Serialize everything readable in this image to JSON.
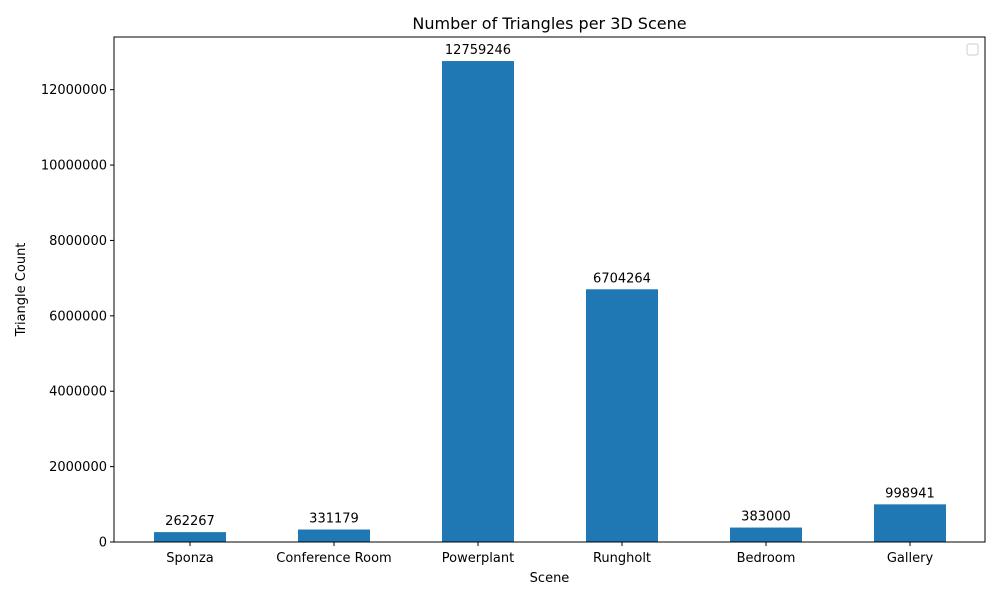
{
  "chart_data": {
    "type": "bar",
    "title": "Number of Triangles per 3D Scene",
    "xlabel": "Scene",
    "ylabel": "Triangle Count",
    "categories": [
      "Sponza",
      "Conference Room",
      "Powerplant",
      "Rungholt",
      "Bedroom",
      "Gallery"
    ],
    "values": [
      262267,
      331179,
      12759246,
      6704264,
      383000,
      998941
    ],
    "ylim": [
      0,
      13397208
    ],
    "yticks": [
      0,
      2000000,
      4000000,
      6000000,
      8000000,
      10000000,
      12000000
    ],
    "bar_color": "#1f77b4",
    "grid": false,
    "legend_position": "upper right"
  }
}
